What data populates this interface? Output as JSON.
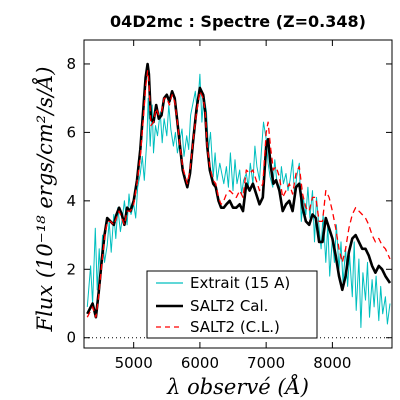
{
  "chart_data": {
    "type": "line",
    "title": "04D2mc : Spectre (Z=0.348)",
    "xlabel": "λ observé (Å)",
    "ylabel": "Flux (10⁻¹⁸ ergs/cm²/s/Å)",
    "xlim": [
      4250,
      8900
    ],
    "ylim": [
      -0.3,
      8.7
    ],
    "xticks": [
      5000,
      6000,
      7000,
      8000
    ],
    "yticks": [
      0,
      2,
      4,
      6,
      8
    ],
    "grid": false,
    "legend_position": "bottom-center",
    "zero_line": {
      "y": 0,
      "style": "dotted"
    },
    "series": [
      {
        "name": "Extrait (15 A)",
        "color": "#00bfbf",
        "style": "solid",
        "x": [
          4300,
          4350,
          4380,
          4420,
          4450,
          4480,
          4500,
          4530,
          4560,
          4600,
          4630,
          4660,
          4700,
          4730,
          4760,
          4800,
          4830,
          4860,
          4900,
          4930,
          4960,
          5000,
          5030,
          5060,
          5100,
          5130,
          5160,
          5200,
          5220,
          5250,
          5280,
          5300,
          5330,
          5360,
          5400,
          5430,
          5460,
          5500,
          5530,
          5560,
          5600,
          5630,
          5660,
          5700,
          5730,
          5760,
          5800,
          5830,
          5860,
          5900,
          5930,
          5960,
          6000,
          6030,
          6060,
          6100,
          6130,
          6160,
          6200,
          6230,
          6260,
          6300,
          6330,
          6360,
          6400,
          6430,
          6460,
          6500,
          6530,
          6560,
          6600,
          6630,
          6660,
          6700,
          6730,
          6760,
          6800,
          6830,
          6860,
          6900,
          6930,
          6960,
          7000,
          7030,
          7060,
          7100,
          7130,
          7160,
          7200,
          7230,
          7260,
          7300,
          7330,
          7360,
          7400,
          7430,
          7460,
          7500,
          7530,
          7560,
          7600,
          7630,
          7660,
          7700,
          7730,
          7760,
          7800,
          7830,
          7860,
          7900,
          7930,
          7960,
          8000,
          8030,
          8060,
          8100,
          8130,
          8160,
          8200,
          8230,
          8260,
          8300,
          8330,
          8360,
          8400,
          8430,
          8460,
          8500,
          8530,
          8560,
          8600,
          8630,
          8660,
          8700,
          8730,
          8760,
          8800,
          8830,
          8870
        ],
        "y": [
          0.9,
          2.1,
          1.0,
          3.2,
          1.4,
          2.6,
          1.8,
          3.0,
          2.2,
          2.7,
          3.4,
          2.5,
          3.6,
          2.9,
          3.8,
          3.1,
          3.5,
          4.0,
          3.3,
          4.2,
          3.6,
          3.9,
          3.5,
          4.4,
          4.8,
          5.3,
          4.6,
          5.8,
          7.0,
          5.6,
          6.8,
          5.4,
          6.2,
          5.9,
          6.6,
          5.7,
          6.4,
          5.9,
          6.8,
          6.1,
          5.6,
          6.0,
          5.4,
          5.8,
          6.1,
          5.3,
          5.9,
          5.5,
          6.5,
          6.9,
          7.2,
          6.6,
          7.7,
          6.3,
          7.1,
          6.6,
          5.5,
          6.0,
          4.7,
          5.4,
          4.6,
          5.1,
          4.8,
          4.5,
          5.0,
          4.4,
          5.4,
          4.3,
          5.2,
          4.5,
          4.9,
          4.2,
          4.6,
          4.8,
          4.4,
          5.1,
          4.5,
          5.6,
          5.0,
          4.6,
          5.5,
          6.3,
          5.8,
          5.1,
          4.7,
          4.4,
          5.2,
          4.6,
          4.2,
          5.0,
          4.5,
          4.8,
          4.3,
          4.6,
          5.2,
          4.1,
          4.7,
          5.1,
          3.4,
          4.1,
          3.6,
          4.4,
          3.5,
          4.3,
          2.8,
          4.1,
          3.2,
          2.6,
          3.6,
          2.2,
          3.3,
          1.8,
          2.9,
          2.2,
          3.3,
          2.0,
          2.8,
          1.6,
          2.6,
          1.5,
          2.4,
          1.2,
          2.8,
          0.8,
          2.3,
          0.3,
          1.9,
          1.1,
          2.2,
          0.6,
          1.7,
          0.9,
          1.8,
          0.5,
          1.5,
          0.7,
          1.2,
          0.4,
          1.0
        ]
      },
      {
        "name": "SALT2 Cal.",
        "color": "#000000",
        "style": "solid",
        "x": [
          4300,
          4380,
          4430,
          4470,
          4520,
          4560,
          4600,
          4650,
          4700,
          4740,
          4780,
          4820,
          4860,
          4900,
          4950,
          5000,
          5050,
          5100,
          5150,
          5180,
          5210,
          5230,
          5260,
          5300,
          5340,
          5380,
          5420,
          5460,
          5500,
          5540,
          5580,
          5620,
          5660,
          5700,
          5740,
          5780,
          5810,
          5850,
          5900,
          5950,
          6000,
          6050,
          6080,
          6110,
          6150,
          6200,
          6240,
          6280,
          6320,
          6360,
          6400,
          6450,
          6500,
          6550,
          6600,
          6650,
          6700,
          6750,
          6800,
          6850,
          6900,
          6950,
          7000,
          7030,
          7070,
          7110,
          7150,
          7200,
          7250,
          7300,
          7350,
          7400,
          7450,
          7500,
          7550,
          7600,
          7650,
          7700,
          7750,
          7800,
          7850,
          7900,
          7950,
          8000,
          8050,
          8100,
          8150,
          8200,
          8250,
          8300,
          8350,
          8400,
          8450,
          8500,
          8550,
          8600,
          8650,
          8700,
          8750,
          8800,
          8870
        ],
        "y": [
          0.7,
          1.0,
          0.6,
          1.3,
          2.3,
          3.0,
          3.5,
          3.4,
          3.3,
          3.6,
          3.8,
          3.6,
          3.3,
          3.8,
          3.7,
          4.0,
          4.6,
          5.5,
          6.8,
          7.6,
          8.0,
          7.7,
          6.4,
          6.3,
          6.8,
          6.4,
          6.5,
          7.0,
          7.1,
          6.9,
          7.2,
          7.0,
          6.3,
          5.6,
          4.9,
          4.6,
          4.4,
          4.8,
          5.8,
          6.7,
          7.3,
          7.1,
          6.6,
          5.6,
          4.9,
          4.5,
          4.4,
          4.0,
          3.8,
          3.8,
          3.9,
          4.0,
          3.8,
          3.8,
          3.9,
          3.7,
          4.5,
          4.3,
          4.5,
          4.2,
          3.9,
          4.1,
          5.6,
          5.8,
          5.0,
          4.5,
          4.6,
          4.3,
          3.7,
          3.9,
          4.0,
          3.7,
          4.4,
          4.5,
          3.8,
          3.4,
          3.3,
          3.6,
          3.5,
          2.8,
          2.8,
          3.5,
          3.2,
          2.9,
          2.4,
          1.8,
          1.4,
          1.8,
          2.5,
          2.9,
          3.0,
          2.8,
          2.6,
          2.6,
          2.4,
          2.1,
          1.9,
          2.1,
          2.0,
          1.8,
          1.6
        ]
      },
      {
        "name": "SALT2 (C.L.)",
        "color": "#ff0000",
        "style": "dashed",
        "x": [
          4300,
          4380,
          4430,
          4470,
          4520,
          4560,
          4600,
          4650,
          4700,
          4740,
          4780,
          4820,
          4860,
          4900,
          4950,
          5000,
          5050,
          5100,
          5150,
          5180,
          5210,
          5230,
          5260,
          5300,
          5340,
          5380,
          5420,
          5460,
          5500,
          5540,
          5580,
          5620,
          5660,
          5700,
          5740,
          5780,
          5810,
          5850,
          5900,
          5950,
          6000,
          6050,
          6080,
          6110,
          6150,
          6200,
          6240,
          6280,
          6320,
          6360,
          6400,
          6450,
          6500,
          6550,
          6600,
          6650,
          6700,
          6750,
          6800,
          6850,
          6900,
          6950,
          7000,
          7030,
          7070,
          7110,
          7150,
          7200,
          7250,
          7300,
          7350,
          7400,
          7450,
          7500,
          7550,
          7600,
          7650,
          7700,
          7750,
          7800,
          7850,
          7900,
          7950,
          8000,
          8050,
          8100,
          8150,
          8200,
          8250,
          8300,
          8350,
          8400,
          8450,
          8500,
          8550,
          8600,
          8650,
          8700,
          8750,
          8800,
          8870
        ],
        "y": [
          0.6,
          0.9,
          0.6,
          1.2,
          2.2,
          2.9,
          3.4,
          3.4,
          3.3,
          3.5,
          3.7,
          3.5,
          3.3,
          3.7,
          3.7,
          3.9,
          4.5,
          5.3,
          6.5,
          7.3,
          7.8,
          7.5,
          6.2,
          6.3,
          6.7,
          6.5,
          6.6,
          7.0,
          7.0,
          6.8,
          7.1,
          6.9,
          6.3,
          5.6,
          5.0,
          4.7,
          4.5,
          4.9,
          5.8,
          6.6,
          7.2,
          7.0,
          6.6,
          5.6,
          5.0,
          4.6,
          4.5,
          4.1,
          3.9,
          4.0,
          4.2,
          4.3,
          4.2,
          4.1,
          4.3,
          4.1,
          4.9,
          4.8,
          4.9,
          4.6,
          4.3,
          4.5,
          6.0,
          6.3,
          5.5,
          4.9,
          5.0,
          4.7,
          4.1,
          4.3,
          4.5,
          4.2,
          4.8,
          5.0,
          4.2,
          3.8,
          3.7,
          4.1,
          4.1,
          3.4,
          3.4,
          4.3,
          4.1,
          3.7,
          3.2,
          2.6,
          2.2,
          2.6,
          3.2,
          3.6,
          3.8,
          3.7,
          3.6,
          3.5,
          3.3,
          3.0,
          2.8,
          2.9,
          2.7,
          2.6,
          2.3
        ]
      }
    ]
  }
}
